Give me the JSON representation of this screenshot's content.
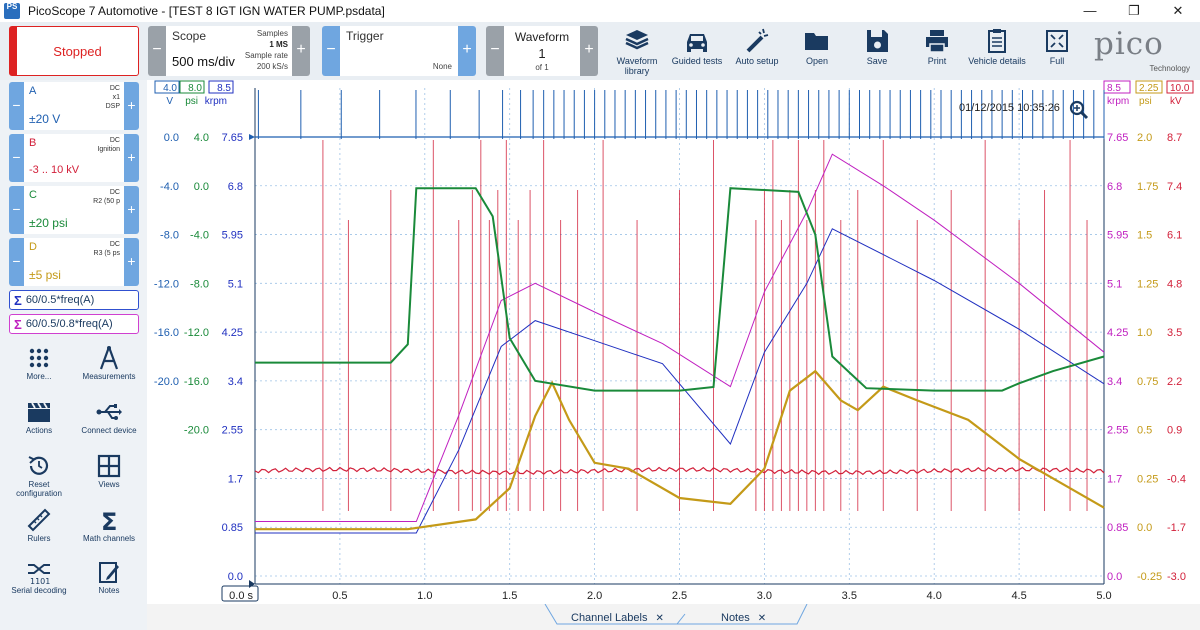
{
  "window": {
    "title": "PicoScope 7 Automotive - [TEST 8  IGT IGN WATER PUMP.psdata]",
    "app_icon_text": "PS",
    "minimize": "—",
    "maximize": "❐",
    "close": "✕"
  },
  "toolbar": {
    "stopped_label": "Stopped",
    "scope": {
      "title": "Scope",
      "value": "500 ms/div",
      "samples_label": "Samples",
      "samples_value": "1 MS",
      "rate_label": "Sample rate",
      "rate_value": "200 kS/s"
    },
    "trigger": {
      "title": "Trigger",
      "mode": "None"
    },
    "waveform": {
      "title": "Waveform",
      "number": "1",
      "of_label": "of 1"
    },
    "tools": [
      {
        "name": "waveform-library",
        "label": "Waveform library",
        "icon": "stack-icon"
      },
      {
        "name": "guided-tests",
        "label": "Guided tests",
        "icon": "car-icon"
      },
      {
        "name": "auto-setup",
        "label": "Auto setup",
        "icon": "wand-icon"
      },
      {
        "name": "open",
        "label": "Open",
        "icon": "folder-icon"
      },
      {
        "name": "save",
        "label": "Save",
        "icon": "floppy-icon"
      },
      {
        "name": "print",
        "label": "Print",
        "icon": "printer-icon"
      },
      {
        "name": "vehicle-details",
        "label": "Vehicle details",
        "icon": "clipboard-icon"
      },
      {
        "name": "full",
        "label": "Full",
        "icon": "fullscreen-icon"
      }
    ],
    "logo": {
      "text": "pico",
      "sub": "Technology"
    }
  },
  "sidebar": {
    "channels": [
      {
        "letter": "A",
        "info1": "DC",
        "info2": "x1",
        "info3": "DSP",
        "range": "±20 V",
        "color": "#1f5fb0"
      },
      {
        "letter": "B",
        "info1": "DC",
        "info2": "Ignition",
        "info3": "",
        "range": "-3 .. 10 kV",
        "color": "#d2203a"
      },
      {
        "letter": "C",
        "info1": "DC",
        "info2": "R2 (50 p",
        "info3": "",
        "range": "±20 psi",
        "color": "#1a8a3a"
      },
      {
        "letter": "D",
        "info1": "DC",
        "info2": "R3 (5 ps",
        "info3": "",
        "range": "±5 psi",
        "color": "#c49a18"
      }
    ],
    "math": [
      {
        "label": "60/0.5*freq(A)",
        "color": "#2030c0",
        "border": "#3050d0"
      },
      {
        "label": "60/0.5/0.8*freq(A)",
        "color": "#c020c0",
        "border": "#d040d0"
      }
    ],
    "tools": [
      {
        "name": "more",
        "label": "More...",
        "icon": "dots-grid-icon"
      },
      {
        "name": "measurements",
        "label": "Measurements",
        "icon": "compass-icon"
      },
      {
        "name": "actions",
        "label": "Actions",
        "icon": "clapper-icon"
      },
      {
        "name": "connect-device",
        "label": "Connect device",
        "icon": "usb-icon"
      },
      {
        "name": "reset-configuration",
        "label": "Reset configuration",
        "icon": "reset-icon"
      },
      {
        "name": "views",
        "label": "Views",
        "icon": "grid-icon"
      },
      {
        "name": "rulers",
        "label": "Rulers",
        "icon": "ruler-icon"
      },
      {
        "name": "math-channels",
        "label": "Math channels",
        "icon": "sigma-icon"
      },
      {
        "name": "serial-decoding",
        "label": "Serial decoding",
        "icon": "serial-icon"
      },
      {
        "name": "notes",
        "label": "Notes",
        "icon": "note-icon"
      }
    ]
  },
  "chart": {
    "timestamp": "01/12/2015 10:35:26",
    "left_axis_headers": [
      {
        "value": "4.0",
        "unit": "V",
        "color": "#1f5fb0"
      },
      {
        "value": "8.0",
        "unit": "psi",
        "color": "#1a8a3a"
      },
      {
        "value": "8.5",
        "unit": "krpm",
        "color": "#2030c0"
      }
    ],
    "right_axis_headers": [
      {
        "value": "8.5",
        "unit": "krpm",
        "color": "#c020c0"
      },
      {
        "value": "2.25",
        "unit": "psi",
        "color": "#c49a18"
      },
      {
        "value": "10.0",
        "unit": "kV",
        "color": "#d2203a"
      }
    ],
    "left_ticks": {
      "volts": [
        "0.0",
        "-4.0",
        "-8.0",
        "-12.0",
        "-16.0",
        "-20.0"
      ],
      "psi": [
        "4.0",
        "0.0",
        "-4.0",
        "-8.0",
        "-12.0",
        "-16.0",
        "-20.0"
      ],
      "krpm": [
        "7.65",
        "6.8",
        "5.95",
        "5.1",
        "4.25",
        "3.4",
        "2.55",
        "1.7",
        "0.85",
        "0.0"
      ]
    },
    "right_ticks": {
      "krpm": [
        "7.65",
        "6.8",
        "5.95",
        "5.1",
        "4.25",
        "3.4",
        "2.55",
        "1.7",
        "0.85",
        "0.0"
      ],
      "psi": [
        "2.0",
        "1.75",
        "1.5",
        "1.25",
        "1.0",
        "0.75",
        "0.5",
        "0.25",
        "0.0",
        "-0.25"
      ],
      "kv": [
        "8.7",
        "7.4",
        "6.1",
        "4.8",
        "3.5",
        "2.2",
        "0.9",
        "-0.4",
        "-1.7",
        "-3.0"
      ]
    },
    "x_ticks": [
      "0.0 s",
      "0.5",
      "1.0",
      "1.5",
      "2.0",
      "2.5",
      "3.0",
      "3.5",
      "4.0",
      "4.5",
      "5.0"
    ]
  },
  "chart_data": {
    "type": "line",
    "xlabel": "s",
    "xlim": [
      0,
      5
    ],
    "series": [
      {
        "name": "60/0.5*freq(A)",
        "color": "#2030c0",
        "unit": "krpm",
        "x": [
          0,
          0.95,
          1.2,
          1.45,
          1.65,
          2.0,
          2.4,
          2.8,
          3.0,
          3.25,
          3.4,
          3.7,
          4.0,
          4.5,
          5.0
        ],
        "y": [
          0.75,
          0.75,
          2.2,
          4.0,
          4.45,
          4.1,
          3.7,
          2.3,
          3.9,
          5.1,
          6.05,
          5.6,
          5.15,
          4.3,
          3.35
        ]
      },
      {
        "name": "60/0.5/0.8*freq(A)",
        "color": "#c020c0",
        "unit": "krpm",
        "x": [
          0,
          0.95,
          1.2,
          1.45,
          1.65,
          2.0,
          2.4,
          2.8,
          3.0,
          3.25,
          3.4,
          3.7,
          4.0,
          4.5,
          5.0
        ],
        "y": [
          0.95,
          0.95,
          2.8,
          4.8,
          5.1,
          4.6,
          4.05,
          3.3,
          4.95,
          6.35,
          7.35,
          6.8,
          6.2,
          5.1,
          3.9
        ]
      },
      {
        "name": "C",
        "color": "#1a8a3a",
        "unit": "psi",
        "x": [
          0,
          0.8,
          0.9,
          0.95,
          1.3,
          1.4,
          1.5,
          1.65,
          2.0,
          2.5,
          2.7,
          2.8,
          3.2,
          3.3,
          3.4,
          3.6,
          4.0,
          4.4,
          4.5,
          4.7,
          5.0
        ],
        "y": [
          -14.5,
          -14.5,
          -13.0,
          -0.2,
          -0.2,
          -2.5,
          -12.5,
          -16.0,
          -16.8,
          -16.8,
          -16.5,
          -0.2,
          -0.5,
          -4.0,
          -14.0,
          -16.6,
          -16.8,
          -16.8,
          -16.2,
          -15.2,
          -14.0
        ]
      },
      {
        "name": "D",
        "color": "#c49a18",
        "unit": "psi",
        "x": [
          0,
          0.9,
          1.3,
          1.5,
          1.65,
          1.75,
          1.85,
          2.0,
          2.2,
          2.5,
          2.8,
          3.0,
          3.15,
          3.3,
          3.45,
          3.55,
          3.7,
          3.9,
          4.2,
          4.5,
          4.8,
          5.0
        ],
        "y": [
          -0.01,
          -0.01,
          0.04,
          0.2,
          0.57,
          0.74,
          0.55,
          0.33,
          0.3,
          0.15,
          0.12,
          0.3,
          0.7,
          0.8,
          0.65,
          0.6,
          0.72,
          0.65,
          0.55,
          0.35,
          0.2,
          0.1
        ]
      },
      {
        "name": "B",
        "color": "#d2203a",
        "unit": "kV",
        "baseline": -0.2,
        "spike_times": [
          0.4,
          0.55,
          0.8,
          1.05,
          1.2,
          1.28,
          1.33,
          1.38,
          1.43,
          1.48,
          1.55,
          1.62,
          1.7,
          1.8,
          1.9,
          2.05,
          2.25,
          2.5,
          2.7,
          2.95,
          3.0,
          3.05,
          3.1,
          3.15,
          3.2,
          3.25,
          3.3,
          3.35,
          3.45,
          3.55,
          3.7,
          3.9,
          4.1,
          4.3,
          4.5,
          4.65,
          4.8,
          4.9
        ]
      },
      {
        "name": "A",
        "color": "#1f5fb0",
        "unit": "V",
        "baseline": 0.0,
        "pulse_interval_start": 0.25,
        "pulse_interval_end": 0.06
      }
    ]
  },
  "bottom_tabs": [
    {
      "label": "Channel Labels",
      "close": "✕"
    },
    {
      "label": "Notes",
      "close": "✕"
    }
  ]
}
